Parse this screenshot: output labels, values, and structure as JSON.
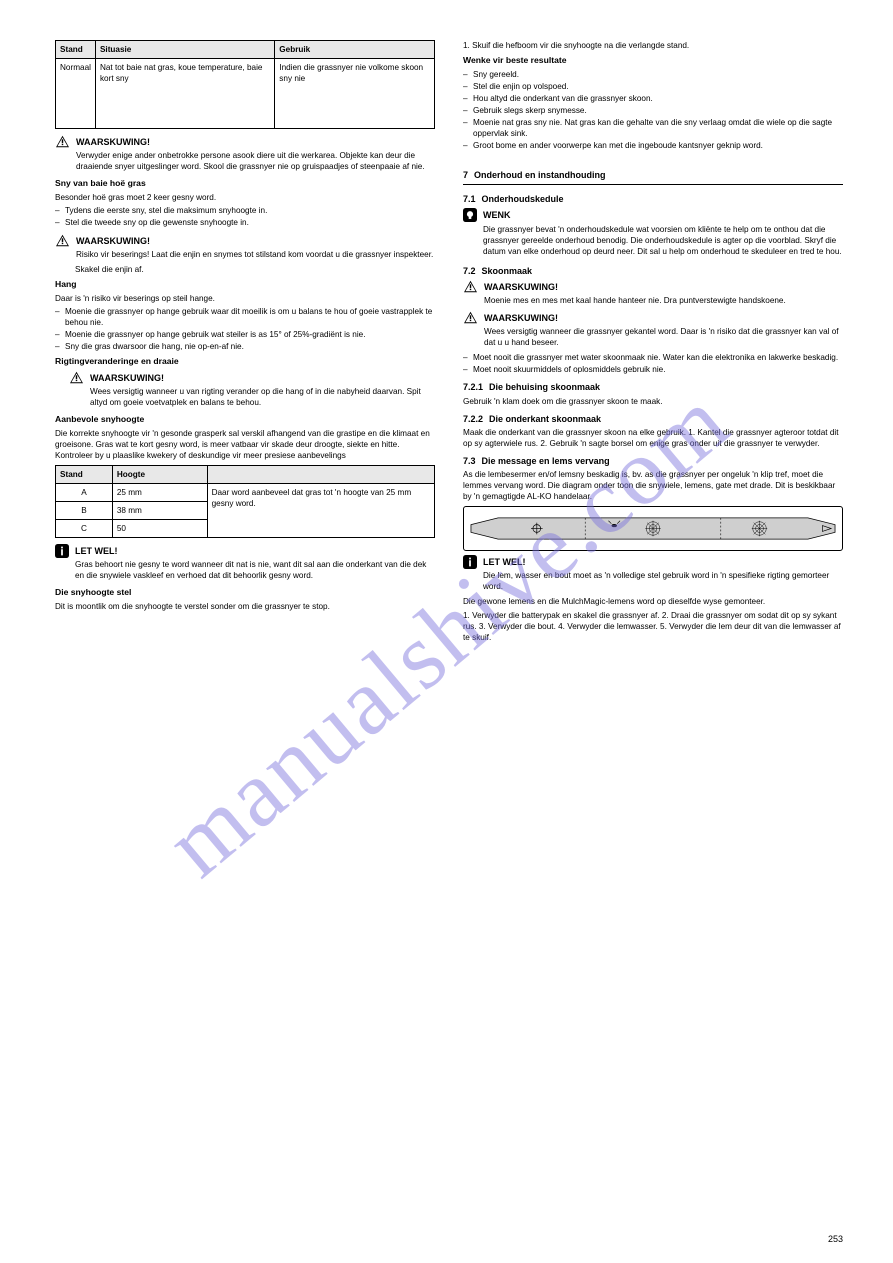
{
  "page_number": "253",
  "watermark_text": "manualshive.com",
  "col_left": {
    "table1": {
      "headers": [
        "Stand",
        "Situasie",
        "Gebruik"
      ],
      "row": [
        "Normaal",
        "Nat tot baie nat gras, koue temperature, baie kort sny",
        "Indien die grassnyer nie volkome skoon sny nie"
      ]
    },
    "warn1_title": "WAARSKUWING!",
    "warn1_text": "Verwyder enige ander onbetrokke persone asook diere uit die werkarea. Objekte kan deur die draaiende snyer uitgeslinger word. Skool die grassnyer nie op gruispaadjes of steenpaaie af nie.",
    "sub1": "Sny van baie hoë gras",
    "sub1_p": "Besonder hoë gras moet 2 keer gesny word.",
    "sub1_list": [
      "Tydens die eerste sny, stel die maksimum snyhoogte in.",
      "Stel die tweede sny op die gewenste snyhoogte in."
    ],
    "warn2_title": "WAARSKUWING!",
    "warn2_text": "Risiko vir beserings! Laat die enjin en snymes tot stilstand kom voordat u die grassnyer inspekteer.",
    "p_after_warn2": "Skakel die enjin af.",
    "sub2": "Hang",
    "sub2_p1": "Daar is 'n risiko vir beserings op steil hange.",
    "sub2_list": [
      "Moenie die grassnyer op hange gebruik waar dit moeilik is om u balans te hou of goeie vastrapplek te behou nie.",
      "Moenie die grassnyer op hange gebruik wat steiler is as 15° of 25%-gradiënt is nie.",
      "Sny die gras dwarsoor die hang, nie op-en-af nie."
    ],
    "sub3": "Rigtingveranderinge en draaie",
    "indent_icon": true,
    "warn3_title": "WAARSKUWING!",
    "warn3_text": "Wees versigtig wanneer u van rigting verander op die hang of in die nabyheid daarvan. Spit altyd om goeie voetvatplek en balans te behou.",
    "sub4_title": "Aanbevole snyhoogte",
    "sub4_p": "Die korrekte snyhoogte vir 'n gesonde grasperk sal verskil afhangend van die grastipe en die klimaat en groeisone. Gras wat te kort gesny word, is meer vatbaar vir skade deur droogte, siekte en hitte. Kontroleer by u plaaslike kwekery of deskundige vir meer presiese aanbevelings",
    "table2": {
      "headers": [
        "Stand",
        "Hoogte",
        ""
      ],
      "rows": [
        [
          "A",
          "25 mm",
          "Daar word aanbeveel dat gras tot 'n hoogte van 25 mm gesny word."
        ],
        [
          "B",
          "38 mm",
          ""
        ],
        [
          "C",
          "50",
          ""
        ]
      ]
    },
    "note_title": "LET WEL!",
    "note_text": "Gras behoort nie gesny te word wanneer dit nat is nie, want dit sal aan die onderkant van die dek en die snywiele vaskleef en verhoed dat dit behoorlik gesny word.",
    "sub5_title": "Die snyhoogte stel",
    "sub5_p": "Dit is moontlik om die snyhoogte te verstel sonder om die grassnyer te stop."
  },
  "col_right": {
    "p1": "1. Skuif die hefboom vir die snyhoogte na die verlangde stand.",
    "sub1": "Wenke vir beste resultate",
    "sub1_list": [
      "Sny gereeld.",
      "Stel die enjin op volspoed.",
      "Hou altyd die onderkant van die grassnyer skoon.",
      "Gebruik slegs skerp snymesse.",
      "Moenie nat gras sny nie. Nat gras kan die gehalte van die sny verlaag omdat die wiele op die sagte oppervlak sink.",
      "Groot bome en ander voorwerpe kan met die ingeboude kantsnyer geknip word."
    ],
    "sec7_num": "7",
    "sec7_title": "Onderhoud en instandhouding",
    "sec71_num": "7.1",
    "sec71_title": "Onderhoudskedule",
    "tip_title": "WENK",
    "tip_text": "Die grassnyer bevat 'n onderhoudskedule wat voorsien om kliënte te help om te onthou dat die grassnyer gereelde onderhoud benodig. Die onderhoudskedule is agter op die voorblad. Skryf die datum van elke onderhoud op deurd neer. Dit sal u help om onderhoud te skeduleer en tred te hou.",
    "sec72_num": "7.2",
    "sec72_title": "Skoonmaak",
    "warn1_title": "WAARSKUWING!",
    "warn1_text": "Moenie mes en mes met kaal hande hanteer nie. Dra puntverstewigte handskoene.",
    "warn2_title": "WAARSKUWING!",
    "warn2_text": "Wees versigtig wanneer die grassnyer gekantel word. Daar is 'n risiko dat die grassnyer kan val of dat u u hand beseer.",
    "after_warn_list": [
      "Moet nooit die grassnyer met water skoonmaak nie. Water kan die elektronika en lakwerke beskadig.",
      "Moet nooit skuurmiddels of oplosmiddels gebruik nie."
    ],
    "sec721_num": "7.2.1",
    "sec721_title": "Die behuising skoonmaak",
    "sec721_p": "Gebruik 'n klam doek om die grassnyer skoon te maak.",
    "sec722_num": "7.2.2",
    "sec722_title": "Die onderkant skoonmaak",
    "sec722_p": "Maak die onderkant van die grassnyer skoon na elke gebruik. 1. Kantel die grassnyer agteroor totdat dit op sy agterwiele rus. 2. Gebruik 'n sagte borsel om enige gras onder uit die grassnyer te verwyder.",
    "sec73_num": "7.3",
    "sec73_title": "Die message en lems vervang",
    "sec73_intro": "As die lembesermer en/of lemsny beskadig is, bv. as die grassnyer per ongeluk 'n klip tref, moet die lemmes vervang word. Die diagram onder toon die snywiele, lemens, gate met drade. Dit is beskikbaar by 'n gemagtigde AL-KO handelaar.",
    "diagram_label": "",
    "note_title": "LET WEL!",
    "note_text": "Die lem, wasser en bout moet as 'n volledige stel gebruik word in 'n spesifieke rigting gemorteer word.",
    "p_last1": "Die gewone lemens en die MulchMagic-lemens word op dieselfde wyse gemonteer.",
    "p_last2": "1. Verwyder die batterypak en skakel die grassnyer af. 2. Draai die grassnyer om sodat dit op sy sykant rus. 3. Verwyder die bout. 4. Verwyder die lemwasser. 5. Verwyder die lem deur dit van die lemwasser af te skuif."
  },
  "icons": {
    "warning_svg": "<svg width='15' height='13' viewBox='0 0 20 18'><polygon points='10,1 19,17 1,17' fill='#000'/><polygon points='10,3.5 17,15.5 3,15.5' fill='#fff'/><rect x='9' y='6' width='2' height='5' fill='#000'/><rect x='9' y='12' width='2' height='2' fill='#000'/></svg>",
    "note_svg": "<svg width='14' height='14' viewBox='0 0 16 16'><rect x='0' y='0' width='16' height='16' rx='3' fill='#000'/><rect x='7' y='3' width='2' height='2' fill='#fff'/><rect x='7' y='6' width='2' height='7' fill='#fff'/></svg>",
    "tip_svg": "<svg width='14' height='14' viewBox='0 0 16 16'><rect x='0' y='0' width='16' height='16' rx='3' fill='#000'/><circle cx='8' cy='7' r='3.5' fill='#fff'/><rect x='6.5' y='10' width='3' height='2.5' fill='#fff'/></svg>"
  },
  "blade": {
    "bg": "#cfcfcf",
    "border": "#000"
  }
}
